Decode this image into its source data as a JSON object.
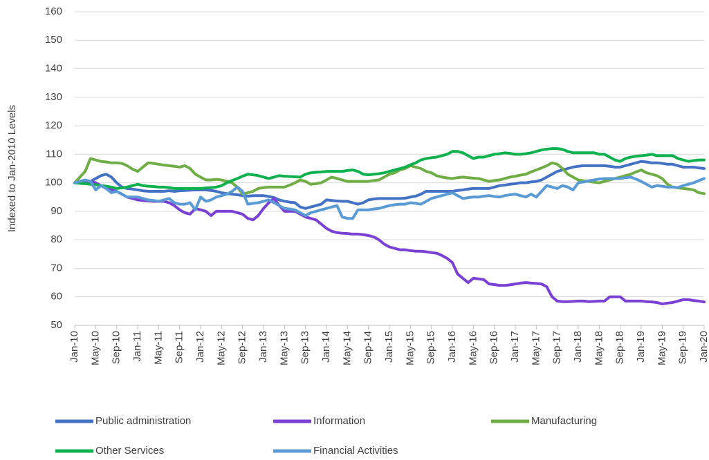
{
  "chart_data": {
    "type": "line",
    "y_axis_label": "Indexed to Jan-2010 Levels",
    "categories": [
      "Jan-10",
      null,
      null,
      null,
      "May-10",
      null,
      null,
      null,
      "Sep-10",
      null,
      null,
      null,
      "Jan-11",
      null,
      null,
      null,
      "May-11",
      null,
      null,
      null,
      "Sep-11",
      null,
      null,
      null,
      "Jan-12",
      null,
      null,
      null,
      "May-12",
      null,
      null,
      null,
      "Sep-12",
      null,
      null,
      null,
      "Jan-13",
      null,
      null,
      null,
      "May-13",
      null,
      null,
      null,
      "Sep-13",
      null,
      null,
      null,
      "Jan-14",
      null,
      null,
      null,
      "May-14",
      null,
      null,
      null,
      "Sep-14",
      null,
      null,
      null,
      "Jan-15",
      null,
      null,
      null,
      "May-15",
      null,
      null,
      null,
      "Sep-15",
      null,
      null,
      null,
      "Jan-16",
      null,
      null,
      null,
      "May-16",
      null,
      null,
      null,
      "Sep-16",
      null,
      null,
      null,
      "Jan-17",
      null,
      null,
      null,
      "May-17",
      null,
      null,
      null,
      "Sep-17",
      null,
      null,
      null,
      "Jan-18",
      null,
      null,
      null,
      "May-18",
      null,
      null,
      null,
      "Sep-18",
      null,
      null,
      null,
      "Jan-19",
      null,
      null,
      null,
      "May-19",
      null,
      null,
      null,
      "Sep-19",
      null,
      null,
      null,
      "Jan-20"
    ],
    "series": [
      {
        "name": "Public administration",
        "color": "#4472c4",
        "values": [
          100,
          100,
          99.8,
          100.5,
          101.5,
          102.5,
          103,
          102,
          100,
          98.5,
          98,
          97.8,
          97.5,
          97.2,
          97,
          97,
          97,
          97,
          97.2,
          97,
          97.2,
          97.3,
          97.4,
          97.5,
          97.5,
          97.5,
          97.3,
          97,
          96.5,
          96.2,
          96,
          95.8,
          95.5,
          95.3,
          95.5,
          95.5,
          95.5,
          95.2,
          94.8,
          94,
          93.5,
          93.2,
          93,
          91.5,
          91,
          91.5,
          92,
          92.5,
          94,
          93.8,
          93.6,
          93.5,
          93.5,
          93,
          92.5,
          93,
          94,
          94.3,
          94.5,
          94.5,
          94.5,
          94.5,
          94.5,
          94.6,
          95,
          95.3,
          96,
          97,
          97,
          97,
          97,
          97,
          97,
          97.3,
          97.5,
          97.8,
          98,
          98,
          98,
          98,
          98.5,
          99,
          99.2,
          99.5,
          99.7,
          100,
          100,
          100.3,
          100.5,
          101,
          102,
          103,
          104,
          104.5,
          105,
          105.5,
          105.8,
          106,
          106,
          106,
          106,
          106,
          105.8,
          105.5,
          105.5,
          106,
          106.5,
          107,
          107.5,
          107.3,
          107,
          107,
          106.8,
          106.5,
          106.5,
          106,
          105.5,
          105.5,
          105.5,
          105.2,
          105
        ]
      },
      {
        "name": "Information",
        "color": "#7a42d4",
        "values": [
          100,
          100,
          100.3,
          100.5,
          100,
          99,
          98,
          97.5,
          97,
          96,
          95,
          94.5,
          94,
          93.8,
          93.6,
          93.5,
          93.5,
          93.5,
          93,
          92,
          90.5,
          89.5,
          89,
          91,
          90.5,
          90,
          88.5,
          90,
          90,
          90,
          90,
          89.5,
          89,
          87.5,
          87,
          88.5,
          91,
          93,
          94.5,
          92,
          90,
          90,
          90,
          89,
          88,
          87.5,
          87,
          85.5,
          84,
          83,
          82.5,
          82.3,
          82.2,
          82,
          82,
          81.8,
          81.5,
          81,
          80,
          78.5,
          77.5,
          77,
          76.5,
          76.5,
          76.2,
          76,
          76,
          75.8,
          75.5,
          75.3,
          74.5,
          73.5,
          72,
          68,
          66.5,
          65,
          66.5,
          66.3,
          66,
          64.5,
          64.3,
          64,
          64,
          64.2,
          64.5,
          64.8,
          65,
          64.8,
          64.7,
          64.5,
          63.5,
          60,
          58.5,
          58.3,
          58.3,
          58.4,
          58.5,
          58.5,
          58.3,
          58.4,
          58.5,
          58.5,
          60,
          60,
          60,
          58.5,
          58.5,
          58.5,
          58.5,
          58.3,
          58.2,
          58,
          57.5,
          57.8,
          58,
          58.5,
          59,
          59,
          58.7,
          58.5,
          58.2
        ]
      },
      {
        "name": "Manufacturing",
        "color": "#70ad47",
        "values": [
          100,
          102,
          104,
          108.5,
          108,
          107.5,
          107.3,
          107,
          107,
          106.8,
          106,
          104.8,
          104,
          105.5,
          107,
          106.8,
          106.5,
          106.2,
          106,
          105.8,
          105.5,
          106,
          105,
          103,
          102,
          101,
          101,
          101.2,
          101,
          100.5,
          100,
          98.5,
          96,
          96.5,
          97,
          98,
          98.3,
          98.5,
          98.5,
          98.5,
          98.5,
          99.2,
          100,
          101,
          100.5,
          99.5,
          99.7,
          100,
          101,
          102,
          101.5,
          101,
          100.5,
          100.5,
          100.5,
          100.5,
          100.5,
          100.8,
          101,
          102,
          103,
          103.5,
          104.5,
          105,
          106,
          105.5,
          105,
          104,
          103.5,
          102.5,
          102,
          101.7,
          101.5,
          101.8,
          102,
          101.8,
          101.6,
          101.5,
          101,
          100.5,
          100.8,
          101,
          101.5,
          102,
          102.3,
          102.7,
          103,
          103.8,
          104.5,
          105.2,
          106,
          107,
          106.5,
          105,
          103,
          102,
          101,
          100.7,
          100.5,
          100.2,
          100,
          100.5,
          101,
          101.5,
          102,
          102.5,
          103,
          103.8,
          104.5,
          103.5,
          103,
          102.5,
          101.5,
          99.5,
          98.5,
          98.2,
          98,
          97.8,
          97.5,
          96.5,
          96.2
        ]
      },
      {
        "name": "Other Services",
        "color": "#0fb04e",
        "values": [
          100,
          99.8,
          99.7,
          99.5,
          99.3,
          99,
          98.8,
          98.5,
          98,
          98.2,
          98.5,
          99,
          99.5,
          99,
          98.8,
          98.7,
          98.5,
          98.5,
          98.3,
          98,
          98,
          98,
          98,
          98,
          98,
          98.2,
          98.3,
          98.5,
          99,
          100,
          100.8,
          101.5,
          102.3,
          103,
          102.8,
          102.5,
          102,
          101.5,
          102,
          102.5,
          102.3,
          102.2,
          102.1,
          102,
          103,
          103.5,
          103.7,
          103.8,
          104,
          104,
          104,
          104,
          104.3,
          104.5,
          104,
          103,
          102.8,
          103,
          103.2,
          103.5,
          104,
          104.5,
          105,
          105.5,
          106.3,
          107,
          108,
          108.5,
          108.8,
          109,
          109.5,
          110,
          111,
          111,
          110.5,
          109.5,
          108.5,
          109,
          109,
          109.5,
          110,
          110.2,
          110.5,
          110.3,
          110,
          110,
          110.2,
          110.5,
          111,
          111.5,
          111.8,
          112,
          112,
          111.7,
          111,
          110.5,
          110.5,
          110.5,
          110.5,
          110.5,
          110,
          110,
          109,
          108,
          107.5,
          108.5,
          109,
          109.3,
          109.5,
          109.7,
          110,
          109.5,
          109.5,
          109.5,
          109.5,
          108.5,
          108,
          107.5,
          107.8,
          108,
          108
        ]
      },
      {
        "name": "Financial Activities",
        "color": "#5b9bd5",
        "values": [
          100,
          100.5,
          101,
          100.5,
          97.5,
          99,
          98,
          96.5,
          97,
          96,
          95,
          95,
          95,
          94.5,
          94,
          93.8,
          93.5,
          94,
          94.5,
          93,
          92.5,
          92.5,
          93,
          90.5,
          95,
          93.5,
          94,
          95,
          95.5,
          96,
          97,
          98.5,
          97,
          92.5,
          92.8,
          93,
          93.5,
          94,
          93,
          92,
          91,
          90.8,
          90.5,
          89.5,
          88.5,
          89.5,
          90,
          90.5,
          91,
          91.5,
          92,
          88,
          87.5,
          87.5,
          90.5,
          90.5,
          90.5,
          90.8,
          91,
          91.5,
          92,
          92.3,
          92.5,
          92.5,
          93,
          92.8,
          92.5,
          93.5,
          94.5,
          95,
          95.5,
          96,
          96.5,
          95.5,
          94.5,
          94.8,
          95,
          95,
          95.3,
          95.5,
          95.2,
          95,
          95.5,
          95.8,
          96,
          95.5,
          95,
          96,
          95,
          97,
          99,
          98.5,
          98,
          99,
          98.5,
          97.5,
          100,
          100.3,
          100.7,
          101,
          101.3,
          101.5,
          101.5,
          101.5,
          101.5,
          101.8,
          102,
          101.3,
          100.5,
          99.5,
          98.5,
          99,
          98.8,
          98.5,
          98.5,
          98.3,
          99,
          99.5,
          100,
          100.8,
          101.5
        ]
      }
    ],
    "ylim": [
      50,
      160
    ],
    "yticks": [
      50,
      60,
      70,
      80,
      90,
      100,
      110,
      120,
      130,
      140,
      150,
      160
    ],
    "grid": true,
    "legend": "bottom"
  }
}
